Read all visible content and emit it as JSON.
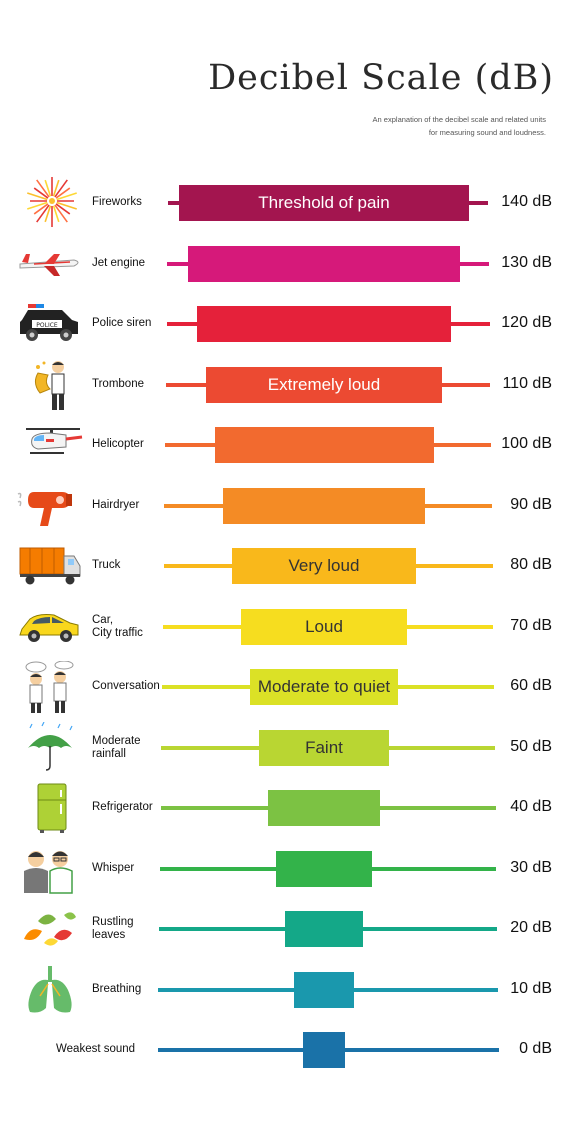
{
  "title": "Decibel Scale (dB)",
  "subtitle_lines": [
    "An explanation of the decibel scale and related units",
    "for measuring sound and loudness."
  ],
  "chart_data": {
    "type": "bar",
    "title": "Decibel Scale (dB)",
    "unit": "dB",
    "levels": [
      {
        "source": "Fireworks",
        "value": 140,
        "value_label": "140 dB",
        "band": "Threshold of pain",
        "color": "#a3154f",
        "icon": "fireworks-icon"
      },
      {
        "source": "Jet engine",
        "value": 130,
        "value_label": "130 dB",
        "band": "",
        "color": "#d6197a",
        "icon": "jet-engine-icon"
      },
      {
        "source": "Police siren",
        "value": 120,
        "value_label": "120 dB",
        "band": "",
        "color": "#e5213a",
        "icon": "police-car-icon"
      },
      {
        "source": "Trombone",
        "value": 110,
        "value_label": "110 dB",
        "band": "Extremely loud",
        "color": "#ec4a32",
        "icon": "trombone-player-icon"
      },
      {
        "source": "Helicopter",
        "value": 100,
        "value_label": "100 dB",
        "band": "",
        "color": "#f26a2f",
        "icon": "helicopter-icon"
      },
      {
        "source": "Hairdryer",
        "value": 90,
        "value_label": "90 dB",
        "band": "",
        "color": "#f48b25",
        "icon": "hairdryer-icon"
      },
      {
        "source": "Truck",
        "value": 80,
        "value_label": "80 dB",
        "band": "Very loud",
        "color": "#f9b81b",
        "icon": "truck-icon"
      },
      {
        "source": "Car,\nCity traffic",
        "value": 70,
        "value_label": "70 dB",
        "band": "Loud",
        "color": "#f6dd1f",
        "icon": "car-icon"
      },
      {
        "source": "Conversation",
        "value": 60,
        "value_label": "60 dB",
        "band": "Moderate to quiet",
        "color": "#dbe126",
        "icon": "conversation-icon"
      },
      {
        "source": "Moderate\nrainfall",
        "value": 50,
        "value_label": "50 dB",
        "band": "Faint",
        "color": "#b9d632",
        "icon": "umbrella-rain-icon"
      },
      {
        "source": "Refrigerator",
        "value": 40,
        "value_label": "40 dB",
        "band": "",
        "color": "#7cc243",
        "icon": "refrigerator-icon"
      },
      {
        "source": "Whisper",
        "value": 30,
        "value_label": "30 dB",
        "band": "",
        "color": "#33b34a",
        "icon": "whisper-icon"
      },
      {
        "source": "Rustling\nleaves",
        "value": 20,
        "value_label": "20 dB",
        "band": "",
        "color": "#14a888",
        "icon": "leaves-icon"
      },
      {
        "source": "Breathing",
        "value": 10,
        "value_label": "10 dB",
        "band": "",
        "color": "#1a98ad",
        "icon": "lungs-icon"
      },
      {
        "source": "Weakest sound",
        "value": 0,
        "value_label": "0 dB",
        "band": "",
        "color": "#1a72a8",
        "icon": ""
      }
    ]
  }
}
